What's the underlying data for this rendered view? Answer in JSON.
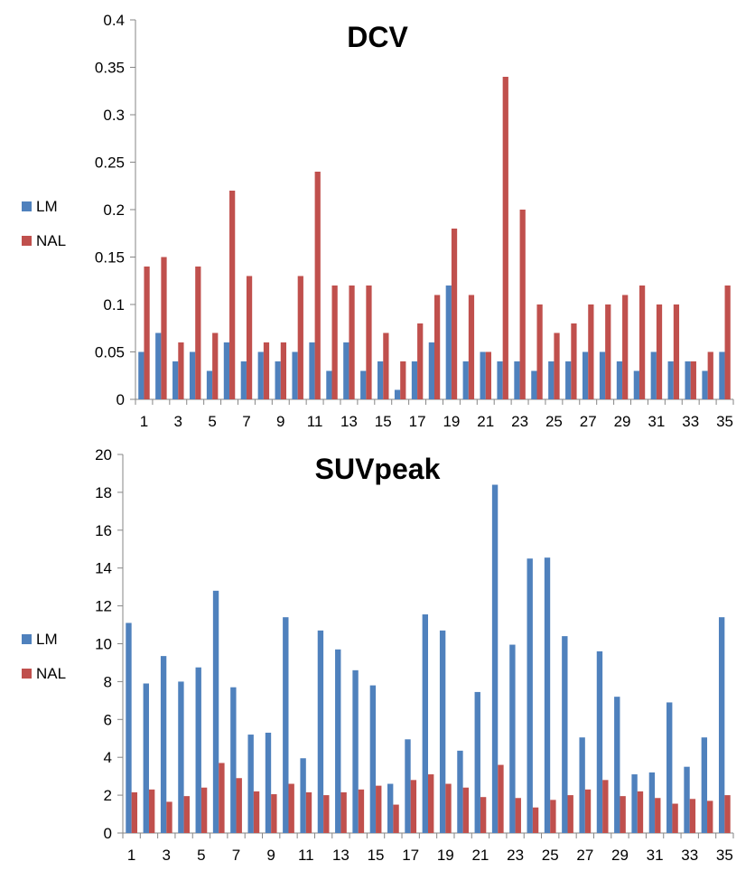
{
  "chart_data": [
    {
      "type": "bar",
      "title": "DCV",
      "xlabel": "",
      "ylabel": "",
      "ylim": [
        0,
        0.4
      ],
      "yticks": [
        "0",
        "0.05",
        "0.1",
        "0.15",
        "0.2",
        "0.25",
        "0.3",
        "0.35",
        "0.4"
      ],
      "categories": [
        "1",
        "2",
        "3",
        "4",
        "5",
        "6",
        "7",
        "8",
        "9",
        "10",
        "11",
        "12",
        "13",
        "14",
        "15",
        "16",
        "17",
        "18",
        "19",
        "20",
        "21",
        "22",
        "23",
        "24",
        "25",
        "26",
        "27",
        "28",
        "29",
        "30",
        "31",
        "32",
        "33",
        "34",
        "35"
      ],
      "xtick_labels": [
        "1",
        "",
        "3",
        "",
        "5",
        "",
        "7",
        "",
        "9",
        "",
        "11",
        "",
        "13",
        "",
        "15",
        "",
        "17",
        "",
        "19",
        "",
        "21",
        "",
        "23",
        "",
        "25",
        "",
        "27",
        "",
        "29",
        "",
        "31",
        "",
        "33",
        "",
        "35"
      ],
      "legend_position": "left",
      "series": [
        {
          "name": "LM",
          "color": "#4F81BD",
          "values": [
            0.05,
            0.07,
            0.04,
            0.05,
            0.03,
            0.06,
            0.04,
            0.05,
            0.04,
            0.05,
            0.06,
            0.03,
            0.06,
            0.03,
            0.04,
            0.01,
            0.04,
            0.06,
            0.12,
            0.04,
            0.05,
            0.04,
            0.04,
            0.03,
            0.04,
            0.04,
            0.05,
            0.05,
            0.04,
            0.03,
            0.05,
            0.04,
            0.04,
            0.03,
            0.05
          ]
        },
        {
          "name": "NAL",
          "color": "#C0504D",
          "values": [
            0.14,
            0.15,
            0.06,
            0.14,
            0.07,
            0.22,
            0.13,
            0.06,
            0.06,
            0.13,
            0.24,
            0.12,
            0.12,
            0.12,
            0.07,
            0.04,
            0.08,
            0.11,
            0.18,
            0.11,
            0.05,
            0.34,
            0.2,
            0.1,
            0.07,
            0.08,
            0.1,
            0.1,
            0.11,
            0.12,
            0.1,
            0.1,
            0.04,
            0.05,
            0.12
          ]
        }
      ]
    },
    {
      "type": "bar",
      "title": "SUVpeak",
      "xlabel": "",
      "ylabel": "",
      "ylim": [
        0,
        20
      ],
      "yticks": [
        "0",
        "2",
        "4",
        "6",
        "8",
        "10",
        "12",
        "14",
        "16",
        "18",
        "20"
      ],
      "categories": [
        "1",
        "2",
        "3",
        "4",
        "5",
        "6",
        "7",
        "8",
        "9",
        "10",
        "11",
        "12",
        "13",
        "14",
        "15",
        "16",
        "17",
        "18",
        "19",
        "20",
        "21",
        "22",
        "23",
        "24",
        "25",
        "26",
        "27",
        "28",
        "29",
        "30",
        "31",
        "32",
        "33",
        "34",
        "35"
      ],
      "xtick_labels": [
        "1",
        "",
        "3",
        "",
        "5",
        "",
        "7",
        "",
        "9",
        "",
        "11",
        "",
        "13",
        "",
        "15",
        "",
        "17",
        "",
        "19",
        "",
        "21",
        "",
        "23",
        "",
        "25",
        "",
        "27",
        "",
        "29",
        "",
        "31",
        "",
        "33",
        "",
        "35"
      ],
      "legend_position": "left",
      "series": [
        {
          "name": "LM",
          "color": "#4F81BD",
          "values": [
            11.1,
            7.9,
            9.35,
            8.0,
            8.75,
            12.8,
            7.7,
            5.2,
            5.3,
            11.4,
            3.95,
            10.7,
            9.7,
            8.6,
            7.8,
            2.6,
            4.95,
            11.55,
            10.7,
            4.35,
            7.45,
            18.4,
            9.95,
            14.5,
            14.55,
            10.4,
            5.05,
            9.6,
            7.2,
            3.1,
            3.2,
            6.9,
            3.5,
            5.05,
            11.4
          ]
        },
        {
          "name": "NAL",
          "color": "#C0504D",
          "values": [
            2.15,
            2.3,
            1.65,
            1.95,
            2.4,
            3.7,
            2.9,
            2.2,
            2.05,
            2.6,
            2.15,
            2.0,
            2.15,
            2.3,
            2.5,
            1.5,
            2.8,
            3.1,
            2.6,
            2.4,
            1.9,
            3.6,
            1.85,
            1.35,
            1.75,
            2.0,
            2.3,
            2.8,
            1.95,
            2.2,
            1.85,
            1.55,
            1.8,
            1.7,
            2.0
          ]
        }
      ]
    }
  ]
}
